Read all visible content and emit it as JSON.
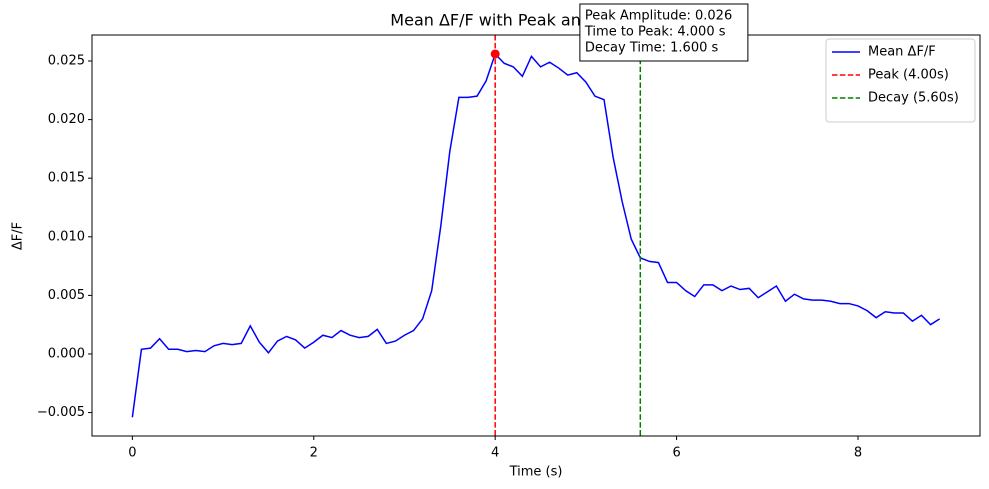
{
  "chart_data": {
    "type": "line",
    "title": "Mean ΔF/F with Peak and Decay Info",
    "xlabel": "Time (s)",
    "ylabel": "ΔF/F",
    "x": [
      0.0,
      0.1,
      0.2,
      0.3,
      0.4,
      0.5,
      0.6,
      0.7,
      0.8,
      0.9,
      1.0,
      1.1,
      1.2,
      1.3,
      1.4,
      1.5,
      1.6,
      1.7,
      1.8,
      1.9,
      2.0,
      2.1,
      2.2,
      2.3,
      2.4,
      2.5,
      2.6,
      2.7,
      2.8,
      2.9,
      3.0,
      3.1,
      3.2,
      3.3,
      3.4,
      3.5,
      3.6,
      3.7,
      3.8,
      3.9,
      4.0,
      4.1,
      4.2,
      4.3,
      4.4,
      4.5,
      4.6,
      4.7,
      4.8,
      4.9,
      5.0,
      5.1,
      5.2,
      5.3,
      5.4,
      5.5,
      5.6,
      5.7,
      5.8,
      5.9,
      6.0,
      6.1,
      6.2,
      6.3,
      6.4,
      6.5,
      6.6,
      6.7,
      6.8,
      6.9,
      7.0,
      7.1,
      7.2,
      7.3,
      7.4,
      7.5,
      7.6,
      7.7,
      7.8,
      7.9,
      8.0,
      8.1,
      8.2,
      8.3,
      8.4,
      8.5,
      8.6,
      8.7,
      8.8,
      8.9
    ],
    "series": [
      {
        "name": "Mean ΔF/F",
        "color": "#0000ff",
        "values": [
          -0.0054,
          0.0004,
          0.0005,
          0.0013,
          0.0004,
          0.0004,
          0.0002,
          0.0003,
          0.0002,
          0.0007,
          0.0009,
          0.0008,
          0.0009,
          0.0024,
          0.001,
          0.0001,
          0.0011,
          0.0015,
          0.0012,
          0.0005,
          0.001,
          0.0016,
          0.0014,
          0.002,
          0.0016,
          0.0014,
          0.0015,
          0.0021,
          0.0009,
          0.0011,
          0.0016,
          0.002,
          0.003,
          0.0054,
          0.0109,
          0.0173,
          0.0219,
          0.0219,
          0.022,
          0.0233,
          0.0256,
          0.0248,
          0.0245,
          0.0237,
          0.0254,
          0.0245,
          0.0249,
          0.0244,
          0.0238,
          0.024,
          0.0232,
          0.022,
          0.0217,
          0.0168,
          0.013,
          0.0098,
          0.0082,
          0.0079,
          0.0078,
          0.0061,
          0.0061,
          0.0054,
          0.0049,
          0.0059,
          0.0059,
          0.0054,
          0.0058,
          0.0055,
          0.0056,
          0.0048,
          0.0053,
          0.0058,
          0.0045,
          0.0051,
          0.0047,
          0.0046,
          0.0046,
          0.0045,
          0.0043,
          0.0043,
          0.0041,
          0.0037,
          0.0031,
          0.0036,
          0.0035,
          0.0035,
          0.0028,
          0.0033,
          0.0025,
          0.003
        ]
      }
    ],
    "vlines": [
      {
        "name": "Peak (4.00s)",
        "x": 4.0,
        "color": "#ff0000"
      },
      {
        "name": "Decay (5.60s)",
        "x": 5.6,
        "color": "#008000"
      }
    ],
    "peak_marker": {
      "x": 4.0,
      "y": 0.0256,
      "color": "#ff0000"
    },
    "annotation": [
      "Peak Amplitude: 0.026",
      "Time to Peak: 4.000 s",
      "Decay Time: 1.600 s"
    ],
    "xlim": [
      -0.445,
      9.345
    ],
    "xticks": [
      0,
      2,
      4,
      6,
      8
    ],
    "ylim": [
      -0.007,
      0.02722
    ],
    "yticks": [
      {
        "value": -0.005,
        "label": "−0.005"
      },
      {
        "value": 0,
        "label": "0.000"
      },
      {
        "value": 0.005,
        "label": "0.005"
      },
      {
        "value": 0.01,
        "label": "0.010"
      },
      {
        "value": 0.015,
        "label": "0.015"
      },
      {
        "value": 0.02,
        "label": "0.020"
      },
      {
        "value": 0.025,
        "label": "0.025"
      }
    ],
    "legend": "upper right"
  }
}
